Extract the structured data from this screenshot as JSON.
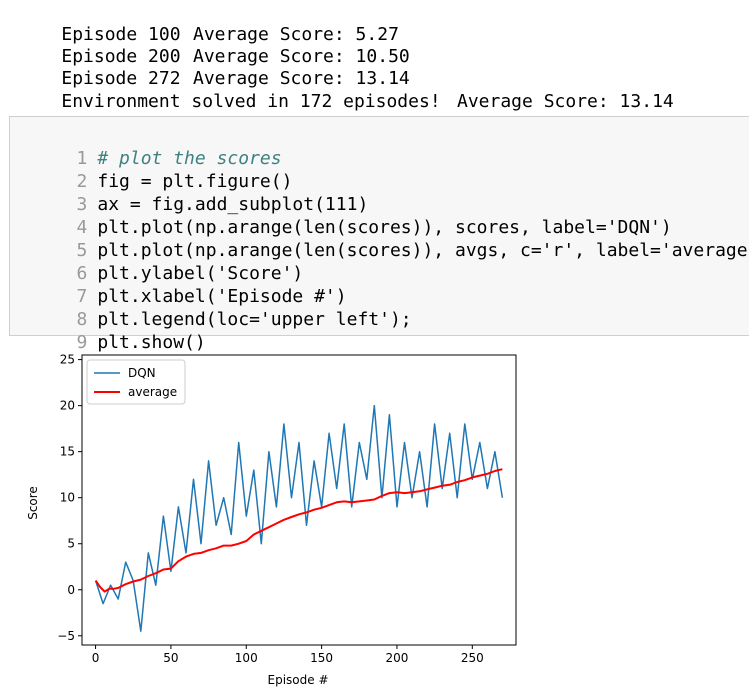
{
  "output": {
    "lines": [
      {
        "left": "Episode 100",
        "right": "Average Score: 5.27"
      },
      {
        "left": "Episode 200",
        "right": "Average Score: 10.50"
      },
      {
        "left": "Episode 272",
        "right": "Average Score: 13.14"
      }
    ],
    "solved_left": "Environment solved in 172 episodes!",
    "solved_right": "Average Score: 13.14"
  },
  "code_cell": {
    "line_numbers": [
      "1",
      "2",
      "3",
      "4",
      "5",
      "6",
      "7",
      "8",
      "9"
    ],
    "lines": [
      "# plot the scores",
      "fig = plt.figure()",
      "ax = fig.add_subplot(111)",
      "plt.plot(np.arange(len(scores)), scores, label='DQN')",
      "plt.plot(np.arange(len(scores)), avgs, c='r', label='average')",
      "plt.ylabel('Score')",
      "plt.xlabel('Episode #')",
      "plt.legend(loc='upper left');",
      "plt.show()"
    ]
  },
  "chart_data": {
    "type": "line",
    "xlabel": "Episode #",
    "ylabel": "Score",
    "xlim": [
      -9,
      279
    ],
    "ylim": [
      -6,
      25.5
    ],
    "xticks": [
      0,
      50,
      100,
      150,
      200,
      250
    ],
    "yticks": [
      -5,
      0,
      5,
      10,
      15,
      20,
      25
    ],
    "legend_placement": "upper-left",
    "grid": false,
    "series": [
      {
        "name": "DQN",
        "color": "#1f77b4",
        "x": [
          0,
          5,
          10,
          15,
          20,
          25,
          30,
          35,
          40,
          45,
          50,
          55,
          60,
          65,
          70,
          75,
          80,
          85,
          90,
          95,
          100,
          105,
          110,
          115,
          120,
          125,
          130,
          135,
          140,
          145,
          150,
          155,
          160,
          165,
          170,
          175,
          180,
          185,
          190,
          195,
          200,
          205,
          210,
          215,
          220,
          225,
          230,
          235,
          240,
          245,
          250,
          255,
          260,
          265,
          270
        ],
        "values": [
          1,
          -1.5,
          0.5,
          -1,
          3,
          1,
          -4.5,
          4,
          0.5,
          8,
          2,
          9,
          4,
          12,
          5,
          14,
          7,
          10,
          6,
          16,
          8,
          13,
          5,
          15,
          9,
          18,
          10,
          16,
          7,
          14,
          9,
          17,
          11,
          18,
          9,
          16,
          12,
          20,
          10,
          19,
          9,
          16,
          10,
          15,
          9,
          18,
          11,
          17,
          10,
          18,
          12,
          16,
          11,
          15,
          10
        ]
      },
      {
        "name": "average",
        "color": "#ff0000",
        "x": [
          0,
          3,
          6,
          9,
          12,
          15,
          20,
          25,
          30,
          35,
          40,
          45,
          50,
          55,
          60,
          65,
          70,
          75,
          80,
          85,
          90,
          95,
          100,
          105,
          110,
          115,
          120,
          125,
          130,
          135,
          140,
          145,
          150,
          155,
          160,
          165,
          170,
          175,
          180,
          185,
          190,
          195,
          200,
          205,
          210,
          215,
          220,
          225,
          230,
          235,
          240,
          245,
          250,
          255,
          260,
          265,
          270
        ],
        "values": [
          1,
          0.3,
          -0.2,
          0.1,
          0.1,
          0.2,
          0.6,
          0.9,
          1.1,
          1.5,
          1.8,
          2.2,
          2.3,
          3.1,
          3.6,
          3.9,
          4.0,
          4.3,
          4.5,
          4.8,
          4.8,
          5.0,
          5.3,
          6.0,
          6.4,
          6.8,
          7.2,
          7.6,
          7.9,
          8.2,
          8.4,
          8.7,
          8.9,
          9.2,
          9.5,
          9.6,
          9.5,
          9.6,
          9.7,
          9.8,
          10.2,
          10.5,
          10.6,
          10.5,
          10.6,
          10.7,
          10.9,
          11.1,
          11.3,
          11.4,
          11.7,
          11.9,
          12.2,
          12.4,
          12.6,
          12.9,
          13.1
        ]
      }
    ]
  }
}
